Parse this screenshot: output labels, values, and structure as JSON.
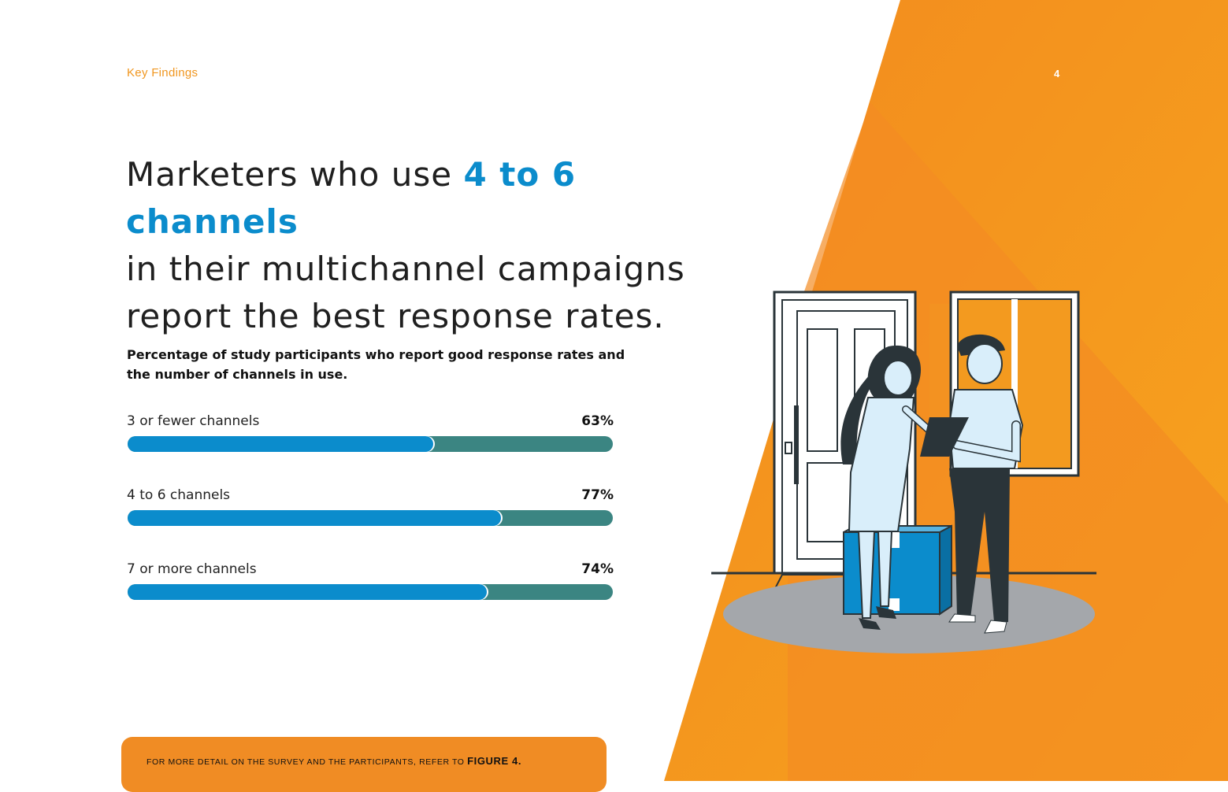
{
  "header": {
    "section_label": "Key Findings",
    "page_number": "4"
  },
  "headline": {
    "part1": "Marketers who use ",
    "highlight": "4 to 6 channels",
    "line2": "in their multichannel campaigns",
    "line3": "report the best response rates."
  },
  "chart_data": {
    "type": "bar",
    "title": "Percentage of study participants who report good response rates and the number of channels in use.",
    "categories": [
      "3 or fewer channels",
      "4 to 6 channels",
      "7 or more channels"
    ],
    "values": [
      63,
      77,
      74
    ],
    "value_labels": [
      "63%",
      "77%",
      "74%"
    ],
    "ylim": [
      0,
      100
    ],
    "orientation": "horizontal",
    "grid": false
  },
  "footnote": {
    "text": "For more detail on the survey and the participants, refer to ",
    "link": "FIGURE 4."
  },
  "colors": {
    "accent_blue": "#0b8ccc",
    "track_teal": "#3b8582",
    "orange": "#f39a1f",
    "orange_dark": "#ef7f22"
  }
}
